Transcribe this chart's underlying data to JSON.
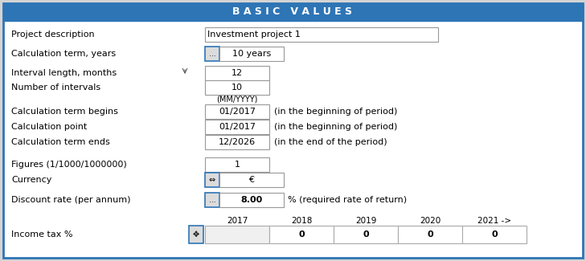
{
  "title": "B A S I C   V A L U E S",
  "title_bg": "#2E75B6",
  "title_color": "#FFFFFF",
  "outer_border_color": "#2E75B6",
  "bg_color": "#FFFFFF",
  "outer_bg": "#D4D4D4",
  "label_fontsize": 8.0,
  "value_fontsize": 8.0,
  "title_fontsize": 9.0,
  "project_desc_label": "Project description",
  "project_desc_value": "Investment project 1",
  "calc_term_label": "Calculation term, years",
  "calc_term_value": "10 years",
  "interval_length_label": "Interval length, months",
  "interval_length_value": "12",
  "num_intervals_label": "Number of intervals",
  "num_intervals_value": "10",
  "mmyyyy": "(MM/YYYY)",
  "calc_begins_label": "Calculation term begins",
  "calc_begins_value": "01/2017",
  "calc_begins_note": "(in the beginning of period)",
  "calc_point_label": "Calculation point",
  "calc_point_value": "01/2017",
  "calc_point_note": "(in the beginning of period)",
  "calc_ends_label": "Calculation term ends",
  "calc_ends_value": "12/2026",
  "calc_ends_note": "(in the end of the period)",
  "figures_label": "Figures (1/1000/1000000)",
  "figures_value": "1",
  "currency_label": "Currency",
  "currency_value": "€",
  "discount_label": "Discount rate (per annum)",
  "discount_value": "8.00",
  "discount_note": "% (required rate of return)",
  "income_tax_label": "Income tax %",
  "table_years": [
    "2017",
    "2018",
    "2019",
    "2020",
    "2021 ->"
  ],
  "table_values": [
    "",
    "0",
    "0",
    "0",
    "0"
  ]
}
